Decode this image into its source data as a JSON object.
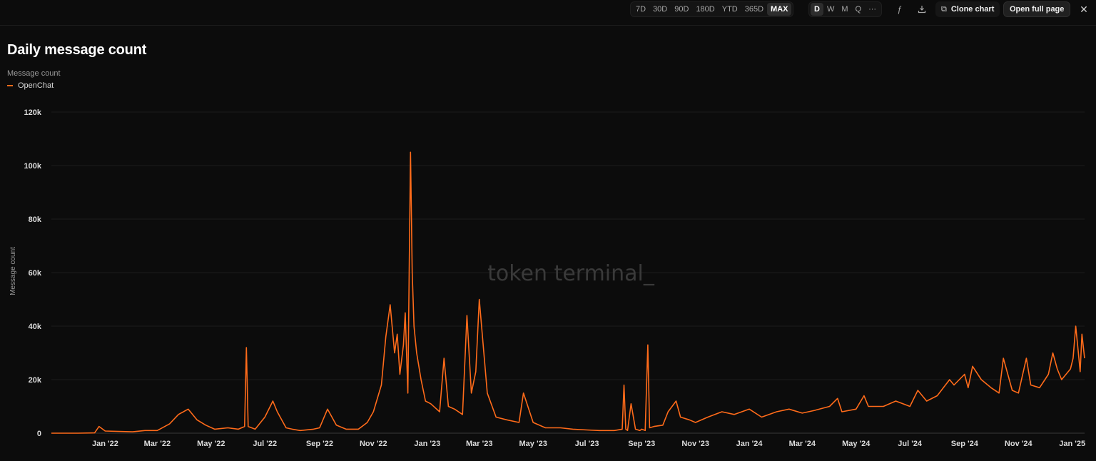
{
  "toolbar": {
    "ranges": [
      "7D",
      "30D",
      "90D",
      "180D",
      "YTD",
      "365D",
      "MAX"
    ],
    "active_range": "MAX",
    "granularity": [
      "D",
      "W",
      "M",
      "Q",
      "···"
    ],
    "active_granularity": "D",
    "icons": [
      "formula-icon",
      "export-icon"
    ],
    "clone_label": "Clone chart",
    "open_label": "Open full page",
    "close_icon": "close-icon"
  },
  "chart_data": {
    "type": "line",
    "title": "Daily message count",
    "subtitle": "Message count",
    "ylabel": "Message count",
    "ylim": [
      0,
      120000
    ],
    "y_ticks": [
      0,
      20000,
      40000,
      60000,
      80000,
      100000,
      120000
    ],
    "y_tick_labels": [
      "0",
      "20k",
      "40k",
      "60k",
      "80k",
      "100k",
      "120k"
    ],
    "x_ticks": [
      "2022-01-01",
      "2022-03-01",
      "2022-05-01",
      "2022-07-01",
      "2022-09-01",
      "2022-11-01",
      "2023-01-01",
      "2023-03-01",
      "2023-05-01",
      "2023-07-01",
      "2023-09-01",
      "2023-11-01",
      "2024-01-01",
      "2024-03-01",
      "2024-05-01",
      "2024-07-01",
      "2024-09-01",
      "2024-11-01",
      "2025-01-01"
    ],
    "x_tick_labels": [
      "Jan '22",
      "Mar '22",
      "May '22",
      "Jul '22",
      "Sep '22",
      "Nov '22",
      "Jan '23",
      "Mar '23",
      "May '23",
      "Jul '23",
      "Sep '23",
      "Nov '23",
      "Jan '24",
      "Mar '24",
      "May '24",
      "Jul '24",
      "Sep '24",
      "Nov '24",
      "Jan '25"
    ],
    "grid": true,
    "legend_position": "top-left",
    "watermark": "token terminal_",
    "series": [
      {
        "name": "OpenChat",
        "color": "#ff6b1a",
        "x": [
          "2021-11-01",
          "2021-12-01",
          "2021-12-20",
          "2021-12-25",
          "2022-01-01",
          "2022-02-01",
          "2022-02-15",
          "2022-03-01",
          "2022-03-15",
          "2022-03-25",
          "2022-04-05",
          "2022-04-15",
          "2022-04-25",
          "2022-05-05",
          "2022-05-20",
          "2022-06-01",
          "2022-06-08",
          "2022-06-10",
          "2022-06-12",
          "2022-06-20",
          "2022-07-01",
          "2022-07-10",
          "2022-07-15",
          "2022-07-25",
          "2022-08-01",
          "2022-08-10",
          "2022-08-25",
          "2022-09-01",
          "2022-09-10",
          "2022-09-20",
          "2022-10-01",
          "2022-10-15",
          "2022-10-25",
          "2022-11-01",
          "2022-11-10",
          "2022-11-15",
          "2022-11-20",
          "2022-11-25",
          "2022-11-28",
          "2022-12-01",
          "2022-12-05",
          "2022-12-07",
          "2022-12-10",
          "2022-12-13",
          "2022-12-15",
          "2022-12-17",
          "2022-12-20",
          "2022-12-25",
          "2022-12-30",
          "2023-01-05",
          "2023-01-15",
          "2023-01-20",
          "2023-01-25",
          "2023-02-01",
          "2023-02-10",
          "2023-02-15",
          "2023-02-20",
          "2023-02-25",
          "2023-03-01",
          "2023-03-10",
          "2023-03-20",
          "2023-04-01",
          "2023-04-15",
          "2023-04-20",
          "2023-05-01",
          "2023-05-15",
          "2023-06-01",
          "2023-06-15",
          "2023-07-01",
          "2023-07-15",
          "2023-08-01",
          "2023-08-10",
          "2023-08-12",
          "2023-08-14",
          "2023-08-16",
          "2023-08-20",
          "2023-08-25",
          "2023-08-30",
          "2023-09-01",
          "2023-09-05",
          "2023-09-08",
          "2023-09-10",
          "2023-09-15",
          "2023-09-25",
          "2023-10-01",
          "2023-10-10",
          "2023-10-15",
          "2023-10-25",
          "2023-11-01",
          "2023-11-15",
          "2023-12-01",
          "2023-12-15",
          "2024-01-01",
          "2024-01-15",
          "2024-02-01",
          "2024-02-15",
          "2024-03-01",
          "2024-03-15",
          "2024-04-01",
          "2024-04-10",
          "2024-04-15",
          "2024-05-01",
          "2024-05-10",
          "2024-05-15",
          "2024-06-01",
          "2024-06-15",
          "2024-07-01",
          "2024-07-10",
          "2024-07-20",
          "2024-08-01",
          "2024-08-15",
          "2024-08-20",
          "2024-09-01",
          "2024-09-05",
          "2024-09-10",
          "2024-09-20",
          "2024-10-01",
          "2024-10-10",
          "2024-10-15",
          "2024-10-25",
          "2024-11-01",
          "2024-11-10",
          "2024-11-15",
          "2024-11-25",
          "2024-12-01",
          "2024-12-05",
          "2024-12-10",
          "2024-12-15",
          "2024-12-20",
          "2024-12-25",
          "2024-12-30",
          "2025-01-02",
          "2025-01-05",
          "2025-01-08",
          "2025-01-10",
          "2025-01-12",
          "2025-01-15"
        ],
        "values": [
          0,
          0,
          100,
          2500,
          800,
          500,
          1000,
          1000,
          3500,
          7000,
          9000,
          5000,
          3000,
          1500,
          2000,
          1500,
          2500,
          32000,
          2500,
          1500,
          6000,
          12000,
          8000,
          2000,
          1500,
          1000,
          1500,
          2000,
          9000,
          3000,
          1500,
          1500,
          4000,
          8000,
          18000,
          36000,
          48000,
          30000,
          37000,
          22000,
          33000,
          45000,
          15000,
          105000,
          60000,
          40000,
          30000,
          20000,
          12000,
          11000,
          8000,
          28000,
          10000,
          9000,
          7000,
          44000,
          15000,
          23000,
          50000,
          15000,
          6000,
          5000,
          4000,
          15000,
          4000,
          2000,
          2000,
          1500,
          1200,
          1000,
          1000,
          1500,
          18000,
          1500,
          1000,
          11000,
          1500,
          1000,
          1500,
          1000,
          33000,
          2000,
          2500,
          3000,
          8000,
          12000,
          6000,
          5000,
          4000,
          6000,
          8000,
          7000,
          9000,
          6000,
          8000,
          9000,
          7500,
          8500,
          10000,
          13000,
          8000,
          9000,
          14000,
          10000,
          10000,
          12000,
          10000,
          16000,
          12000,
          14000,
          20000,
          18000,
          22000,
          17000,
          25000,
          20000,
          17000,
          15000,
          28000,
          16000,
          15000,
          28000,
          18000,
          17000,
          20000,
          22000,
          30000,
          24000,
          20000,
          22000,
          24000,
          28000,
          40000,
          30000,
          23000,
          37000,
          28000
        ]
      }
    ]
  }
}
